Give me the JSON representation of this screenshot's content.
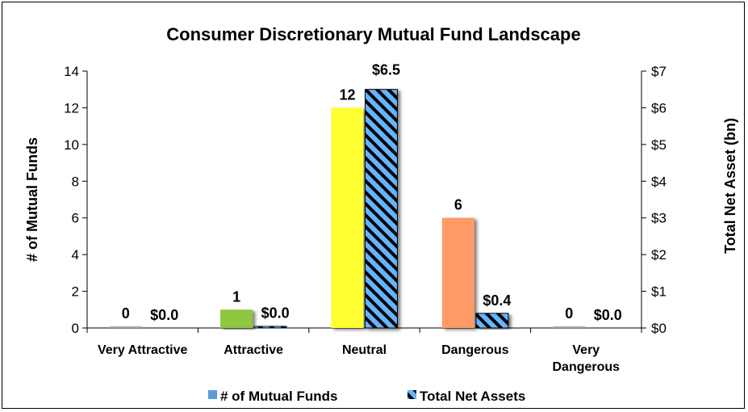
{
  "chart_data": {
    "type": "bar",
    "title": "Consumer Discretionary Mutual Fund Landscape",
    "categories": [
      "Very Attractive",
      "Attractive",
      "Neutral",
      "Dangerous",
      "Very Dangerous"
    ],
    "category_lines": [
      [
        "Very Attractive"
      ],
      [
        "Attractive"
      ],
      [
        "Neutral"
      ],
      [
        "Dangerous"
      ],
      [
        "Very",
        "Dangerous"
      ]
    ],
    "series": [
      {
        "name": "# of Mutual Funds",
        "axis": "left",
        "values": [
          0,
          1,
          12,
          6,
          0
        ],
        "labels": [
          "0",
          "1",
          "12",
          "6",
          "0"
        ],
        "colors": [
          "#a6a6a6",
          "#8dc63f",
          "#ffff33",
          "#ff9966",
          "#a6a6a6"
        ]
      },
      {
        "name": "Total Net Assets",
        "axis": "right",
        "values": [
          0.0,
          0.05,
          6.5,
          0.4,
          0.0
        ],
        "labels": [
          "$0.0",
          "$0.0",
          "$6.5",
          "$0.4",
          "$0.0"
        ],
        "pattern": "blue-black-stripes"
      }
    ],
    "ylabel": "# of Mutual Funds",
    "ylabel_right": "Total Net Asset (bn)",
    "ylim": [
      0,
      14
    ],
    "yticks": [
      "0",
      "2",
      "4",
      "6",
      "8",
      "10",
      "12",
      "14"
    ],
    "ylim_right": [
      0,
      7
    ],
    "yticks_right": [
      "$0",
      "$1",
      "$2",
      "$3",
      "$4",
      "$5",
      "$6",
      "$7"
    ],
    "legend_position": "bottom",
    "grid": false,
    "colors": {
      "stripe_blue": "#66b3ff",
      "stripe_dark": "#000000",
      "legend_series1": "#5b9bd5"
    }
  }
}
